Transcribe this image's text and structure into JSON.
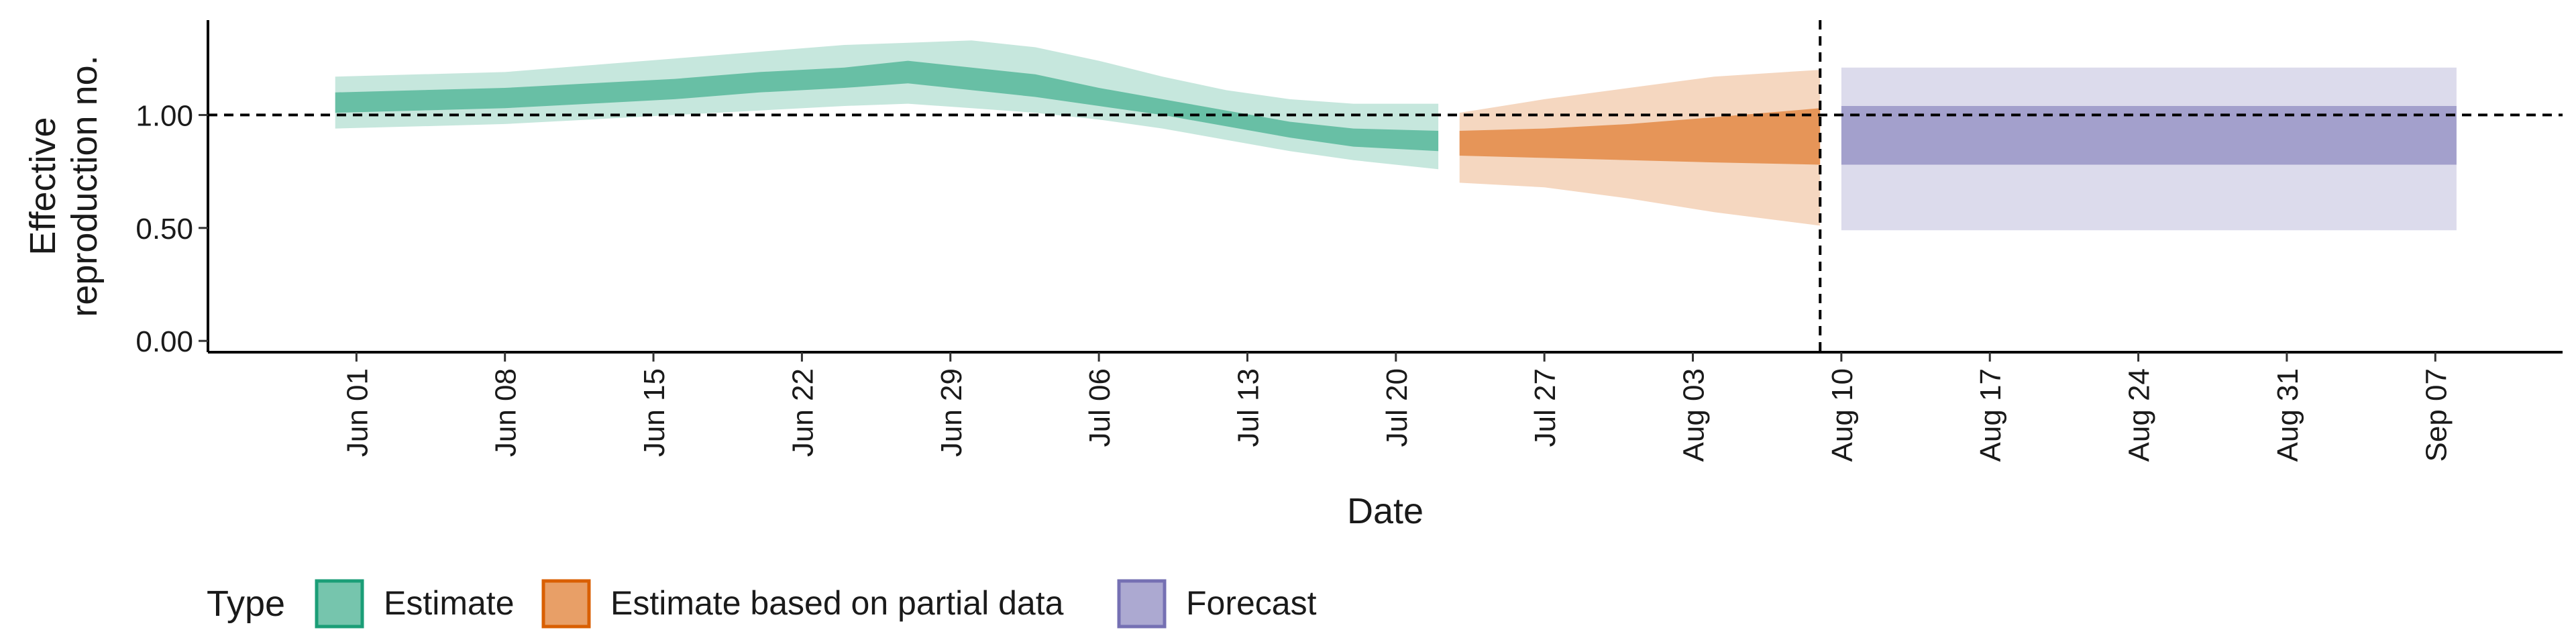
{
  "chart_data": {
    "type": "area",
    "title": "",
    "xlabel": "Date",
    "ylabel_lines": [
      "Effective",
      "reproduction no."
    ],
    "x_tick_labels": [
      "Jun 01",
      "Jun 08",
      "Jun 15",
      "Jun 22",
      "Jun 29",
      "Jul 06",
      "Jul 13",
      "Jul 20",
      "Jul 27",
      "Aug 03",
      "Aug 10",
      "Aug 17",
      "Aug 24",
      "Aug 31",
      "Sep 07"
    ],
    "x_tick_dates": [
      "2020-06-01",
      "2020-06-08",
      "2020-06-15",
      "2020-06-22",
      "2020-06-29",
      "2020-07-06",
      "2020-07-13",
      "2020-07-20",
      "2020-07-27",
      "2020-08-03",
      "2020-08-10",
      "2020-08-17",
      "2020-08-24",
      "2020-08-31",
      "2020-09-07"
    ],
    "xlim": [
      "2020-05-25",
      "2020-09-13"
    ],
    "ylim": [
      -0.05,
      1.42
    ],
    "y_ticks": [
      0,
      0.5,
      1.0
    ],
    "y_tick_labels": [
      "0.00",
      "0.50",
      "1.00"
    ],
    "reference_line_y": 1.0,
    "vertical_line_date": "2020-08-09",
    "legend": {
      "title": "Type",
      "position": "bottom-left",
      "entries": [
        {
          "label": "Estimate",
          "color": "#1b9e77"
        },
        {
          "label": "Estimate based on partial data",
          "color": "#d95f02"
        },
        {
          "label": "Forecast",
          "color": "#7570b3"
        }
      ]
    },
    "series": [
      {
        "name": "Estimate",
        "color": "#1b9e77",
        "points": [
          {
            "x": "2020-05-31",
            "lo90": 0.94,
            "lo50": 1.01,
            "hi50": 1.1,
            "hi90": 1.17
          },
          {
            "x": "2020-06-04",
            "lo90": 0.95,
            "lo50": 1.02,
            "hi50": 1.11,
            "hi90": 1.18
          },
          {
            "x": "2020-06-08",
            "lo90": 0.96,
            "lo50": 1.03,
            "hi50": 1.12,
            "hi90": 1.19
          },
          {
            "x": "2020-06-12",
            "lo90": 0.98,
            "lo50": 1.05,
            "hi50": 1.14,
            "hi90": 1.22
          },
          {
            "x": "2020-06-16",
            "lo90": 1.0,
            "lo50": 1.07,
            "hi50": 1.16,
            "hi90": 1.25
          },
          {
            "x": "2020-06-20",
            "lo90": 1.02,
            "lo50": 1.1,
            "hi50": 1.19,
            "hi90": 1.28
          },
          {
            "x": "2020-06-24",
            "lo90": 1.04,
            "lo50": 1.12,
            "hi50": 1.21,
            "hi90": 1.31
          },
          {
            "x": "2020-06-27",
            "lo90": 1.05,
            "lo50": 1.14,
            "hi50": 1.24,
            "hi90": 1.32
          },
          {
            "x": "2020-06-30",
            "lo90": 1.03,
            "lo50": 1.11,
            "hi50": 1.21,
            "hi90": 1.33
          },
          {
            "x": "2020-07-03",
            "lo90": 1.01,
            "lo50": 1.08,
            "hi50": 1.18,
            "hi90": 1.3
          },
          {
            "x": "2020-07-06",
            "lo90": 0.98,
            "lo50": 1.04,
            "hi50": 1.12,
            "hi90": 1.24
          },
          {
            "x": "2020-07-09",
            "lo90": 0.94,
            "lo50": 1.0,
            "hi50": 1.07,
            "hi90": 1.17
          },
          {
            "x": "2020-07-12",
            "lo90": 0.89,
            "lo50": 0.95,
            "hi50": 1.02,
            "hi90": 1.11
          },
          {
            "x": "2020-07-15",
            "lo90": 0.84,
            "lo50": 0.9,
            "hi50": 0.97,
            "hi90": 1.07
          },
          {
            "x": "2020-07-18",
            "lo90": 0.8,
            "lo50": 0.86,
            "hi50": 0.94,
            "hi90": 1.05
          },
          {
            "x": "2020-07-22",
            "lo90": 0.76,
            "lo50": 0.84,
            "hi50": 0.93,
            "hi90": 1.05
          }
        ]
      },
      {
        "name": "Estimate based on partial data",
        "color": "#d95f02",
        "points": [
          {
            "x": "2020-07-23",
            "lo90": 0.7,
            "lo50": 0.82,
            "hi50": 0.93,
            "hi90": 1.01
          },
          {
            "x": "2020-07-27",
            "lo90": 0.68,
            "lo50": 0.81,
            "hi50": 0.94,
            "hi90": 1.07
          },
          {
            "x": "2020-07-31",
            "lo90": 0.63,
            "lo50": 0.8,
            "hi50": 0.96,
            "hi90": 1.12
          },
          {
            "x": "2020-08-04",
            "lo90": 0.57,
            "lo50": 0.79,
            "hi50": 0.99,
            "hi90": 1.17
          },
          {
            "x": "2020-08-09",
            "lo90": 0.51,
            "lo50": 0.78,
            "hi50": 1.03,
            "hi90": 1.2
          }
        ]
      },
      {
        "name": "Forecast",
        "color": "#7570b3",
        "points": [
          {
            "x": "2020-08-10",
            "lo90": 0.49,
            "lo50": 0.78,
            "hi50": 1.04,
            "hi90": 1.21
          },
          {
            "x": "2020-09-08",
            "lo90": 0.49,
            "lo50": 0.78,
            "hi50": 1.04,
            "hi90": 1.21
          }
        ]
      }
    ]
  }
}
